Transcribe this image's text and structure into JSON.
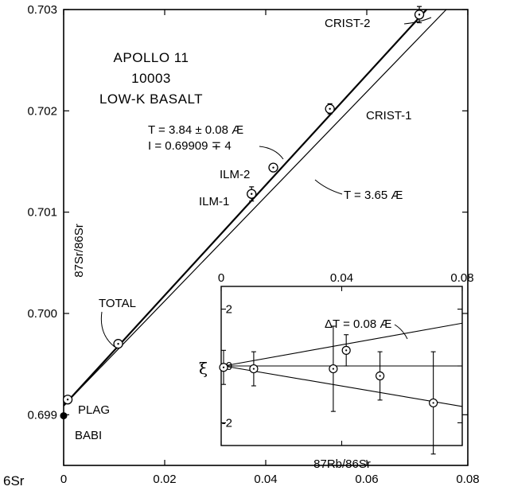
{
  "chart_data": [
    {
      "type": "scatter",
      "title_lines": [
        "APOLLO 11",
        "10003",
        "LOW-K BASALT"
      ],
      "xlabel": "",
      "ylabel": "87Sr/86Sr",
      "corner_label": "6Sr",
      "xlim": [
        0,
        0.08
      ],
      "ylim": [
        0.6985,
        0.703
      ],
      "x_ticks": [
        "0",
        "0.02",
        "0.04",
        "0.06",
        "0.08"
      ],
      "y_ticks": [
        "0.699",
        "0.700",
        "0.701",
        "0.702",
        "0.703"
      ],
      "points": [
        {
          "label": "PLAG",
          "x": 0.0008,
          "y": 0.69915,
          "err": 0
        },
        {
          "label": "TOTAL",
          "x": 0.0108,
          "y": 0.6997,
          "err": 0
        },
        {
          "label": "ILM-1",
          "x": 0.0372,
          "y": 0.70118,
          "err": 7e-05
        },
        {
          "label": "ILM-2",
          "x": 0.0415,
          "y": 0.70144,
          "err": 0
        },
        {
          "label": "CRIST-1",
          "x": 0.0527,
          "y": 0.70202,
          "err": 5e-05
        },
        {
          "label": "CRIST-2",
          "x": 0.0704,
          "y": 0.70295,
          "err": 8e-05
        }
      ],
      "babi": {
        "label": "BABI",
        "x": 0,
        "y": 0.69899
      },
      "lines": [
        {
          "label_lines": [
            "T = 3.84 ± 0.08 Æ",
            "I = 0.69909 ∓ 4"
          ],
          "x0": 0,
          "y0": 0.69909,
          "slope": 0.05443
        },
        {
          "label_lines": [
            "T = 3.65 Æ"
          ],
          "x0": 0,
          "y0": 0.69909,
          "slope": 0.05163
        }
      ]
    },
    {
      "type": "scatter",
      "xlabel": "87Rb/86Sr",
      "ylabel": "ξ",
      "xlim": [
        0,
        0.08
      ],
      "ylim": [
        -2.8,
        2.8
      ],
      "x_ticks": [
        "0",
        "0.04",
        "0.08"
      ],
      "y_ticks": [
        "2",
        "0",
        "-2"
      ],
      "annotation": "ΔT = 0.08 Æ",
      "points": [
        {
          "x": 0.0008,
          "y": -0.05,
          "err": 0.6
        },
        {
          "x": 0.0108,
          "y": -0.1,
          "err": 0.6
        },
        {
          "x": 0.0372,
          "y": -0.1,
          "err": 1.5
        },
        {
          "x": 0.0415,
          "y": 0.55,
          "err": 0.55
        },
        {
          "x": 0.0527,
          "y": -0.35,
          "err": 0.85
        },
        {
          "x": 0.0704,
          "y": -1.3,
          "err": 1.8
        }
      ],
      "envelope": {
        "slope_upper": 19.0,
        "slope_lower": -18.0
      }
    }
  ]
}
